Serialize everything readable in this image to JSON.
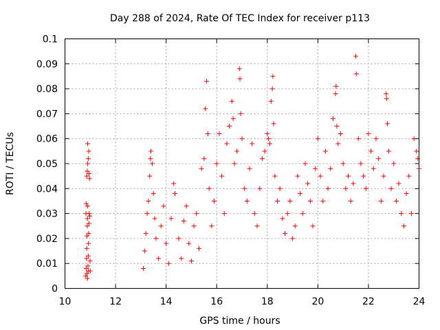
{
  "chart_data": {
    "type": "scatter",
    "title": "Day 288 of 2024, Rate Of TEC Index for receiver p113",
    "xlabel": "GPS time / hours",
    "ylabel": "ROTI / TECUs",
    "xlim": [
      10,
      24
    ],
    "ylim": [
      0,
      0.1
    ],
    "xticks": [
      10,
      12,
      14,
      16,
      18,
      20,
      22,
      24
    ],
    "xtick_labels": [
      "10",
      "12",
      "14",
      "16",
      "18",
      "20",
      "22",
      "24"
    ],
    "yticks": [
      0,
      0.01,
      0.02,
      0.03,
      0.04,
      0.05,
      0.06,
      0.07,
      0.08,
      0.09,
      0.1
    ],
    "ytick_labels": [
      "0",
      "0.01",
      "0.02",
      "0.03",
      "0.04",
      "0.05",
      "0.06",
      "0.07",
      "0.08",
      "0.09",
      "0.1"
    ],
    "grid": true,
    "marker": "+",
    "color": "#ff0000",
    "series": [
      {
        "name": "ROTI",
        "points": [
          [
            10.82,
            0.005
          ],
          [
            10.84,
            0.008
          ],
          [
            10.85,
            0.012
          ],
          [
            10.86,
            0.016
          ],
          [
            10.87,
            0.021
          ],
          [
            10.88,
            0.025
          ],
          [
            10.89,
            0.028
          ],
          [
            10.9,
            0.033
          ],
          [
            10.91,
            0.009
          ],
          [
            10.92,
            0.013
          ],
          [
            10.93,
            0.018
          ],
          [
            10.94,
            0.022
          ],
          [
            10.95,
            0.026
          ],
          [
            10.96,
            0.03
          ],
          [
            10.86,
            0.045
          ],
          [
            10.88,
            0.047
          ],
          [
            10.9,
            0.05
          ],
          [
            10.92,
            0.052
          ],
          [
            10.94,
            0.055
          ],
          [
            10.9,
            0.058
          ],
          [
            10.95,
            0.046
          ],
          [
            10.97,
            0.044
          ],
          [
            10.98,
            0.029
          ],
          [
            10.99,
            0.011
          ],
          [
            11.0,
            0.007
          ],
          [
            10.83,
            0.03
          ],
          [
            10.84,
            0.034
          ],
          [
            10.87,
            0.006
          ],
          [
            10.89,
            0.004
          ],
          [
            10.93,
            0.007
          ],
          [
            13.1,
            0.008
          ],
          [
            13.15,
            0.015
          ],
          [
            13.2,
            0.022
          ],
          [
            13.25,
            0.03
          ],
          [
            13.3,
            0.035
          ],
          [
            13.35,
            0.045
          ],
          [
            13.38,
            0.052
          ],
          [
            13.4,
            0.055
          ],
          [
            13.45,
            0.05
          ],
          [
            13.5,
            0.038
          ],
          [
            13.55,
            0.028
          ],
          [
            13.6,
            0.02
          ],
          [
            13.7,
            0.012
          ],
          [
            13.8,
            0.025
          ],
          [
            13.9,
            0.033
          ],
          [
            14.0,
            0.018
          ],
          [
            14.1,
            0.01
          ],
          [
            14.2,
            0.028
          ],
          [
            14.3,
            0.042
          ],
          [
            14.35,
            0.038
          ],
          [
            14.5,
            0.02
          ],
          [
            14.6,
            0.012
          ],
          [
            14.7,
            0.027
          ],
          [
            14.8,
            0.033
          ],
          [
            14.9,
            0.018
          ],
          [
            15.0,
            0.011
          ],
          [
            15.1,
            0.025
          ],
          [
            15.2,
            0.03
          ],
          [
            15.3,
            0.016
          ],
          [
            15.4,
            0.048
          ],
          [
            15.5,
            0.052
          ],
          [
            15.55,
            0.072
          ],
          [
            15.6,
            0.083
          ],
          [
            15.65,
            0.062
          ],
          [
            15.7,
            0.04
          ],
          [
            15.8,
            0.025
          ],
          [
            15.9,
            0.035
          ],
          [
            16.0,
            0.05
          ],
          [
            16.1,
            0.062
          ],
          [
            16.2,
            0.045
          ],
          [
            16.3,
            0.03
          ],
          [
            16.4,
            0.058
          ],
          [
            16.5,
            0.065
          ],
          [
            16.6,
            0.075
          ],
          [
            16.65,
            0.068
          ],
          [
            16.7,
            0.05
          ],
          [
            16.8,
            0.055
          ],
          [
            16.9,
            0.088
          ],
          [
            16.92,
            0.084
          ],
          [
            16.95,
            0.07
          ],
          [
            17.0,
            0.06
          ],
          [
            17.1,
            0.04
          ],
          [
            17.2,
            0.035
          ],
          [
            17.3,
            0.048
          ],
          [
            17.4,
            0.058
          ],
          [
            17.5,
            0.03
          ],
          [
            17.6,
            0.025
          ],
          [
            17.7,
            0.04
          ],
          [
            17.8,
            0.052
          ],
          [
            17.9,
            0.055
          ],
          [
            18.0,
            0.062
          ],
          [
            18.05,
            0.06
          ],
          [
            18.1,
            0.058
          ],
          [
            18.15,
            0.075
          ],
          [
            18.2,
            0.08
          ],
          [
            18.22,
            0.085
          ],
          [
            18.25,
            0.066
          ],
          [
            18.3,
            0.045
          ],
          [
            18.4,
            0.035
          ],
          [
            18.5,
            0.04
          ],
          [
            18.6,
            0.028
          ],
          [
            18.7,
            0.022
          ],
          [
            18.8,
            0.03
          ],
          [
            18.9,
            0.035
          ],
          [
            19.0,
            0.02
          ],
          [
            19.1,
            0.025
          ],
          [
            19.2,
            0.045
          ],
          [
            19.3,
            0.038
          ],
          [
            19.4,
            0.03
          ],
          [
            19.5,
            0.05
          ],
          [
            19.6,
            0.042
          ],
          [
            19.7,
            0.035
          ],
          [
            19.8,
            0.025
          ],
          [
            19.9,
            0.048
          ],
          [
            20.0,
            0.06
          ],
          [
            20.1,
            0.045
          ],
          [
            20.2,
            0.035
          ],
          [
            20.3,
            0.055
          ],
          [
            20.4,
            0.04
          ],
          [
            20.5,
            0.048
          ],
          [
            20.6,
            0.068
          ],
          [
            20.7,
            0.078
          ],
          [
            20.72,
            0.081
          ],
          [
            20.75,
            0.065
          ],
          [
            20.8,
            0.058
          ],
          [
            20.9,
            0.062
          ],
          [
            21.0,
            0.05
          ],
          [
            21.1,
            0.04
          ],
          [
            21.2,
            0.045
          ],
          [
            21.3,
            0.035
          ],
          [
            21.4,
            0.042
          ],
          [
            21.5,
            0.093
          ],
          [
            21.52,
            0.086
          ],
          [
            21.6,
            0.06
          ],
          [
            21.7,
            0.05
          ],
          [
            21.8,
            0.045
          ],
          [
            21.9,
            0.04
          ],
          [
            22.0,
            0.062
          ],
          [
            22.1,
            0.055
          ],
          [
            22.2,
            0.048
          ],
          [
            22.3,
            0.06
          ],
          [
            22.4,
            0.052
          ],
          [
            22.5,
            0.035
          ],
          [
            22.6,
            0.045
          ],
          [
            22.7,
            0.078
          ],
          [
            22.72,
            0.076
          ],
          [
            22.75,
            0.066
          ],
          [
            22.8,
            0.055
          ],
          [
            22.9,
            0.04
          ],
          [
            23.0,
            0.05
          ],
          [
            23.1,
            0.035
          ],
          [
            23.2,
            0.042
          ],
          [
            23.3,
            0.03
          ],
          [
            23.4,
            0.025
          ],
          [
            23.5,
            0.038
          ],
          [
            23.6,
            0.045
          ],
          [
            23.7,
            0.03
          ],
          [
            23.8,
            0.06
          ],
          [
            23.9,
            0.055
          ],
          [
            23.95,
            0.052
          ],
          [
            24.0,
            0.048
          ]
        ]
      }
    ]
  }
}
